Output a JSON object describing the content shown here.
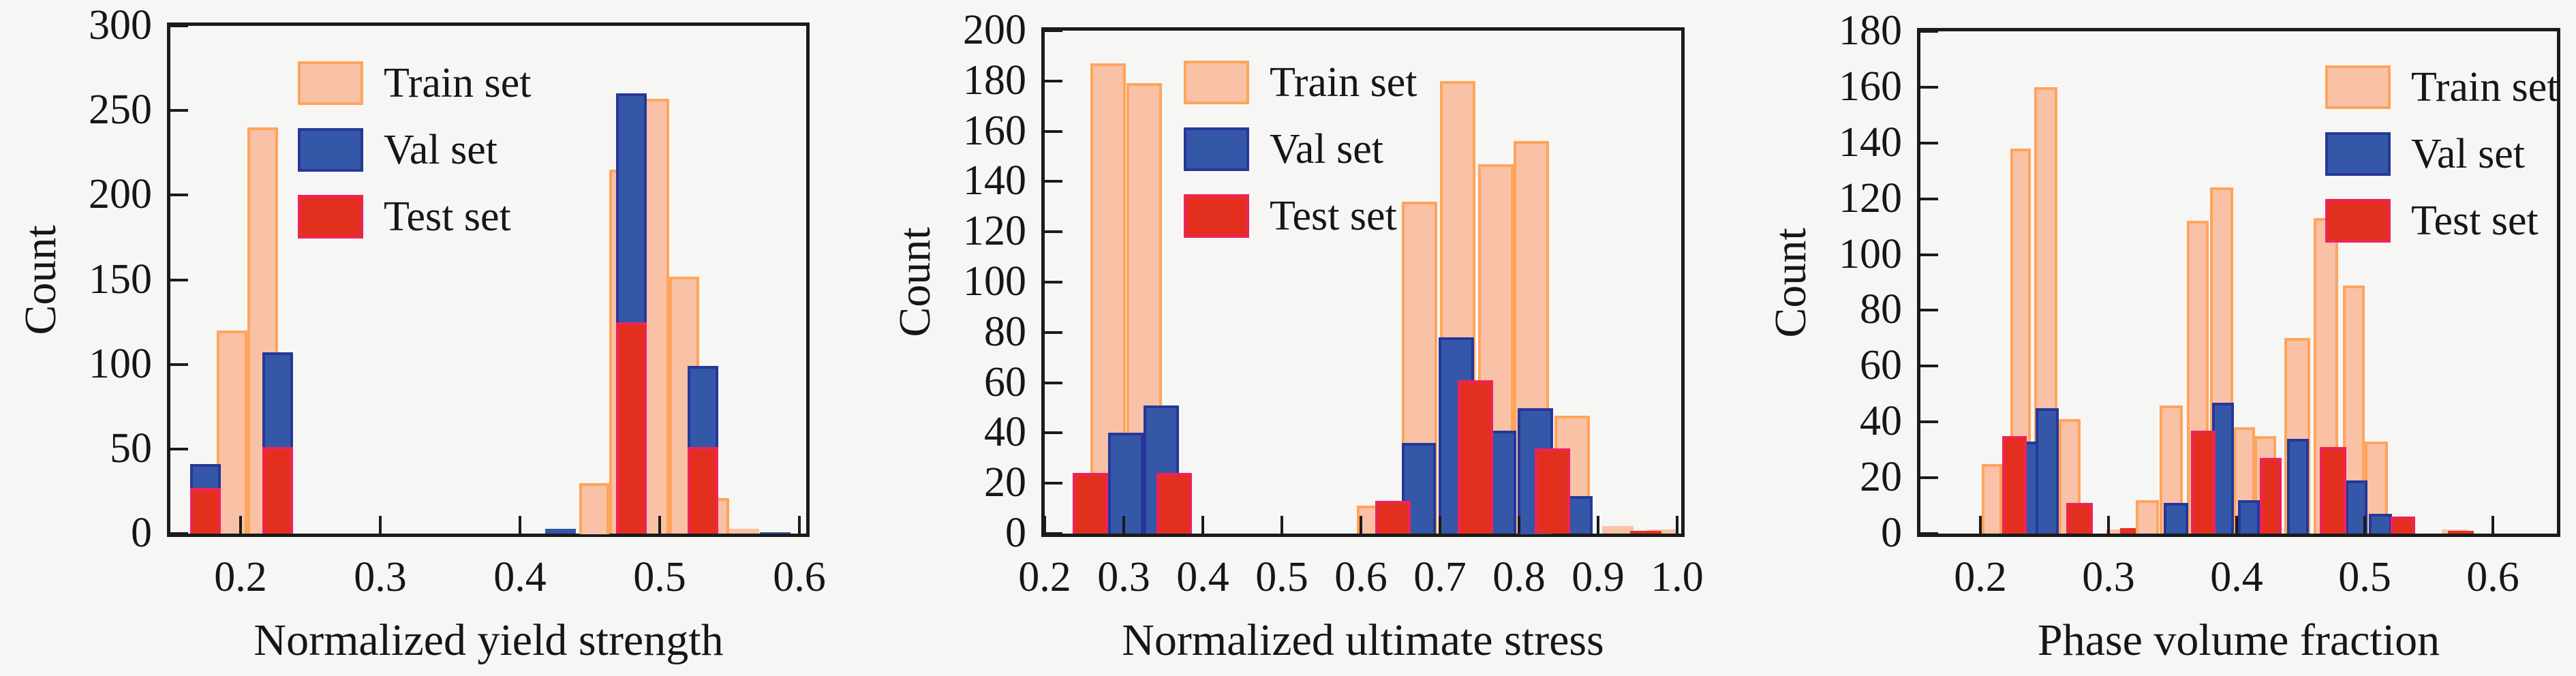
{
  "figure": {
    "background": "#f6f6f4",
    "text_color": "#161616",
    "spine_color": "#1b1b1b"
  },
  "legend": {
    "entries": [
      {
        "label": "Train set",
        "fill": "#f9c2a6",
        "edge": "#ffa45c"
      },
      {
        "label": "Val set",
        "fill": "#3557a7",
        "edge": "#26379b"
      },
      {
        "label": "Test set",
        "fill": "#e3301e",
        "edge": "#ee2358"
      }
    ]
  },
  "chart_data": [
    {
      "type": "bar",
      "subtype": "overlaid-histogram",
      "xlabel": "Normalized yield strength",
      "ylabel": "Count",
      "xlim": [
        0.15,
        0.605
      ],
      "ylim": [
        0,
        300
      ],
      "xticks": [
        0.2,
        0.3,
        0.4,
        0.5,
        0.6
      ],
      "yticks": [
        0,
        50,
        100,
        150,
        200,
        250,
        300
      ],
      "grid": "off",
      "legend_position": "upper-left-inside",
      "series": [
        {
          "name": "Train set",
          "fill": "#f9c2a6",
          "edge": "#ffa45c",
          "bars": [
            [
              0.183,
              0.205,
              120
            ],
            [
              0.205,
              0.227,
              240
            ],
            [
              0.4425,
              0.464,
              30
            ],
            [
              0.464,
              0.4855,
              215
            ],
            [
              0.4855,
              0.507,
              257
            ],
            [
              0.507,
              0.5285,
              152
            ],
            [
              0.5285,
              0.55,
              21
            ],
            [
              0.55,
              0.5715,
              3
            ]
          ]
        },
        {
          "name": "Val set",
          "fill": "#3557a7",
          "edge": "#26379b",
          "bars": [
            [
              0.164,
              0.186,
              41
            ],
            [
              0.216,
              0.238,
              107
            ],
            [
              0.418,
              0.44,
              3
            ],
            [
              0.469,
              0.491,
              260
            ],
            [
              0.52,
              0.542,
              99
            ],
            [
              0.572,
              0.594,
              1
            ]
          ]
        },
        {
          "name": "Test set",
          "fill": "#e3301e",
          "edge": "#ee2358",
          "bars": [
            [
              0.164,
              0.186,
              27
            ],
            [
              0.216,
              0.238,
              51
            ],
            [
              0.469,
              0.491,
              125
            ],
            [
              0.52,
              0.542,
              51
            ]
          ]
        }
      ]
    },
    {
      "type": "bar",
      "subtype": "overlaid-histogram",
      "xlabel": "Normalized ultimate stress",
      "ylabel": "Count",
      "xlim": [
        0.2,
        1.005
      ],
      "ylim": [
        0,
        200
      ],
      "xticks": [
        0.2,
        0.3,
        0.4,
        0.5,
        0.6,
        0.7,
        0.8,
        0.9,
        1.0
      ],
      "yticks": [
        0,
        20,
        40,
        60,
        80,
        100,
        120,
        140,
        160,
        180,
        200
      ],
      "grid": "off",
      "legend_position": "upper-left-inside",
      "series": [
        {
          "name": "Train set",
          "fill": "#f9c2a6",
          "edge": "#ffa45c",
          "bars": [
            [
              0.258,
              0.303,
              187
            ],
            [
              0.303,
              0.348,
              179
            ],
            [
              0.595,
              0.64,
              11
            ],
            [
              0.652,
              0.697,
              132
            ],
            [
              0.7,
              0.745,
              180
            ],
            [
              0.748,
              0.793,
              147
            ],
            [
              0.793,
              0.838,
              156
            ],
            [
              0.845,
              0.89,
              47
            ],
            [
              0.905,
              0.945,
              3
            ],
            [
              0.962,
              1.0,
              1.5
            ]
          ]
        },
        {
          "name": "Val set",
          "fill": "#3557a7",
          "edge": "#26379b",
          "bars": [
            [
              0.28,
              0.325,
              40
            ],
            [
              0.325,
              0.37,
              51
            ],
            [
              0.652,
              0.695,
              36
            ],
            [
              0.698,
              0.743,
              78
            ],
            [
              0.752,
              0.797,
              41
            ],
            [
              0.798,
              0.843,
              50
            ],
            [
              0.848,
              0.893,
              15
            ]
          ]
        },
        {
          "name": "Test set",
          "fill": "#e3301e",
          "edge": "#ee2358",
          "bars": [
            [
              0.235,
              0.28,
              24
            ],
            [
              0.341,
              0.386,
              24
            ],
            [
              0.618,
              0.663,
              13
            ],
            [
              0.722,
              0.767,
              61
            ],
            [
              0.82,
              0.865,
              34
            ],
            [
              0.94,
              0.98,
              1
            ]
          ]
        }
      ]
    },
    {
      "type": "bar",
      "subtype": "overlaid-histogram",
      "xlabel": "Phase volume fraction",
      "ylabel": "Count",
      "xlim": [
        0.153,
        0.65
      ],
      "ylim": [
        0,
        180
      ],
      "xticks": [
        0.2,
        0.3,
        0.4,
        0.5,
        0.6
      ],
      "yticks": [
        0,
        20,
        40,
        60,
        80,
        100,
        120,
        140,
        160,
        180
      ],
      "grid": "off",
      "legend_position": "upper-right-inside",
      "series": [
        {
          "name": "Train set",
          "fill": "#f9c2a6",
          "edge": "#ffa45c",
          "bars": [
            [
              0.201,
              0.217,
              25
            ],
            [
              0.223,
              0.239,
              138
            ],
            [
              0.242,
              0.26,
              160
            ],
            [
              0.261,
              0.278,
              41
            ],
            [
              0.298,
              0.314,
              1.5
            ],
            [
              0.321,
              0.339,
              12
            ],
            [
              0.34,
              0.358,
              46
            ],
            [
              0.361,
              0.378,
              112
            ],
            [
              0.379,
              0.397,
              124
            ],
            [
              0.397,
              0.414,
              38
            ],
            [
              0.414,
              0.431,
              35
            ],
            [
              0.437,
              0.457,
              70
            ],
            [
              0.46,
              0.479,
              113
            ],
            [
              0.483,
              0.5,
              89
            ],
            [
              0.5,
              0.518,
              33
            ],
            [
              0.56,
              0.58,
              1.5
            ]
          ]
        },
        {
          "name": "Val set",
          "fill": "#3557a7",
          "edge": "#26379b",
          "bars": [
            [
              0.226,
              0.245,
              33
            ],
            [
              0.243,
              0.261,
              45
            ],
            [
              0.343,
              0.362,
              11
            ],
            [
              0.381,
              0.398,
              47
            ],
            [
              0.401,
              0.418,
              12
            ],
            [
              0.4395,
              0.4563,
              34
            ],
            [
              0.485,
              0.502,
              19
            ],
            [
              0.503,
              0.521,
              7
            ]
          ]
        },
        {
          "name": "Test set",
          "fill": "#e3301e",
          "edge": "#ee2358",
          "bars": [
            [
              0.217,
              0.236,
              35
            ],
            [
              0.267,
              0.288,
              11
            ],
            [
              0.309,
              0.321,
              2
            ],
            [
              0.364,
              0.383,
              37
            ],
            [
              0.418,
              0.435,
              27
            ],
            [
              0.465,
              0.486,
              31
            ],
            [
              0.52,
              0.539,
              6
            ],
            [
              0.565,
              0.585,
              1
            ]
          ]
        }
      ]
    }
  ]
}
